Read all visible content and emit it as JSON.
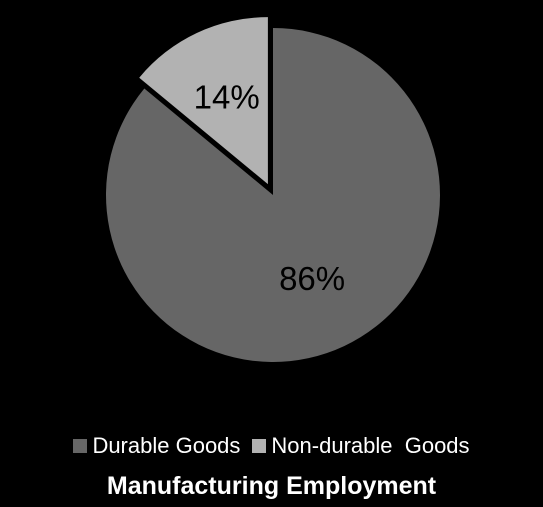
{
  "chart_data": {
    "type": "pie",
    "title": "Manufacturing Employment",
    "slices": [
      {
        "label": "Durable Goods",
        "value": 86,
        "data_label": "86%",
        "color": "#666666",
        "exploded": false
      },
      {
        "label": "Non-durable  Goods",
        "value": 14,
        "data_label": "14%",
        "color": "#b2b2b2",
        "exploded": true
      }
    ],
    "legend_position": "bottom",
    "background_color": "#000000",
    "label_color": "#000000",
    "text_color": "#ffffff"
  }
}
